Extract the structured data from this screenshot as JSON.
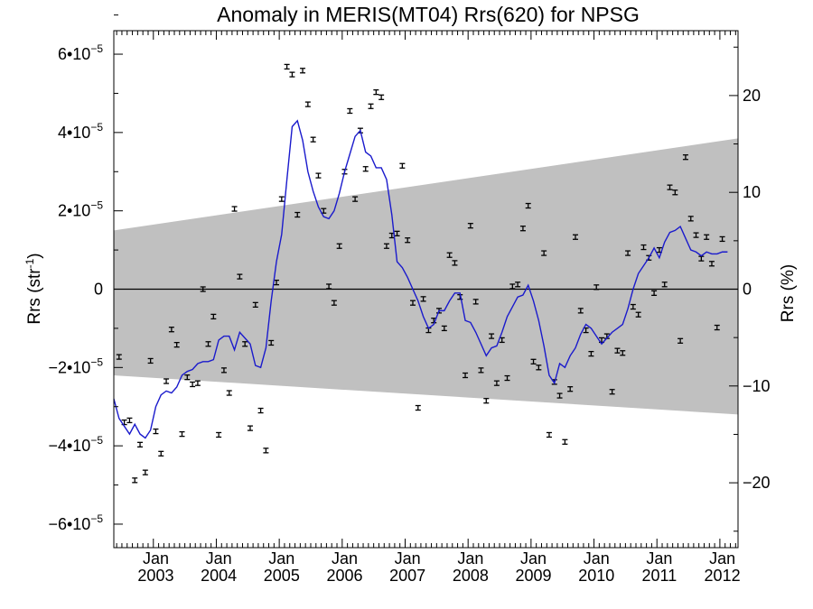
{
  "chart_data": {
    "type": "scatter",
    "title": "Anomaly in MERIS(MT04) Rrs(620) for NPSG",
    "ylabel": "Rrs (str",
    "ylabel_sup": "-1",
    "ylabel_close": ")",
    "y2label": "Rrs (%)",
    "x_range": [
      "2002-05-15",
      "2012-04-15"
    ],
    "ylim": [
      -6.6e-05,
      6.6e-05
    ],
    "y2lim": [
      -26.7,
      26.7
    ],
    "y_ticks": [
      {
        "value": -6e-05,
        "mant": "−6•10",
        "exp": "−5"
      },
      {
        "value": -4e-05,
        "mant": "−4•10",
        "exp": "−5"
      },
      {
        "value": -2e-05,
        "mant": "−2•10",
        "exp": "−5"
      },
      {
        "value": 0,
        "mant": "0",
        "exp": ""
      },
      {
        "value": 2e-05,
        "mant": "2•10",
        "exp": "−5"
      },
      {
        "value": 4e-05,
        "mant": "4•10",
        "exp": "−5"
      },
      {
        "value": 6e-05,
        "mant": "6•10",
        "exp": "−5"
      }
    ],
    "y2_ticks": [
      {
        "value": -20,
        "label": "−20"
      },
      {
        "value": -10,
        "label": "−10"
      },
      {
        "value": 0,
        "label": "0"
      },
      {
        "value": 10,
        "label": "10"
      },
      {
        "value": 20,
        "label": "20"
      }
    ],
    "x_ticks": [
      {
        "date": "2003-01",
        "month": "Jan",
        "year": "2003"
      },
      {
        "date": "2004-01",
        "month": "Jan",
        "year": "2004"
      },
      {
        "date": "2005-01",
        "month": "Jan",
        "year": "2005"
      },
      {
        "date": "2006-01",
        "month": "Jan",
        "year": "2006"
      },
      {
        "date": "2007-01",
        "month": "Jan",
        "year": "2007"
      },
      {
        "date": "2008-01",
        "month": "Jan",
        "year": "2008"
      },
      {
        "date": "2009-01",
        "month": "Jan",
        "year": "2009"
      },
      {
        "date": "2010-01",
        "month": "Jan",
        "year": "2010"
      },
      {
        "date": "2011-01",
        "month": "Jan",
        "year": "2011"
      },
      {
        "date": "2012-01",
        "month": "Jan",
        "year": "2012"
      }
    ],
    "band": {
      "color": "#c0c0c0",
      "start": {
        "date": "2002-05-15",
        "lower": -2.2e-05,
        "upper": 1.5e-05
      },
      "end": {
        "date": "2012-04-15",
        "lower": -3.2e-05,
        "upper": 3.85e-05
      }
    },
    "zero_line": true,
    "series": [
      {
        "kind": "points",
        "color": "#000000",
        "points": [
          [
            "2002-06",
            -1.73e-05
          ],
          [
            "2002-07",
            -3.4e-05
          ],
          [
            "2002-08",
            -3.35e-05
          ],
          [
            "2002-09",
            -4.88e-05
          ],
          [
            "2002-10",
            -3.97e-05
          ],
          [
            "2002-11",
            -4.68e-05
          ],
          [
            "2002-12",
            -1.83e-05
          ],
          [
            "2003-01",
            -3.63e-05
          ],
          [
            "2003-02",
            -4.2e-05
          ],
          [
            "2003-03",
            -2.35e-05
          ],
          [
            "2003-04",
            -1.03e-05
          ],
          [
            "2003-05",
            -1.42e-05
          ],
          [
            "2003-06",
            -3.7e-05
          ],
          [
            "2003-07",
            -2.25e-05
          ],
          [
            "2003-08",
            -2.43e-05
          ],
          [
            "2003-09",
            -2.4e-05
          ],
          [
            "2003-10",
            0.0
          ],
          [
            "2003-11",
            -1.4e-05
          ],
          [
            "2003-12",
            -7e-06
          ],
          [
            "2004-01",
            -3.72e-05
          ],
          [
            "2004-02",
            -2.07e-05
          ],
          [
            "2004-03",
            -2.65e-05
          ],
          [
            "2004-04",
            2.05e-05
          ],
          [
            "2004-05",
            3.2e-06
          ],
          [
            "2004-06",
            -1.4e-05
          ],
          [
            "2004-07",
            -3.55e-05
          ],
          [
            "2004-08",
            -4e-06
          ],
          [
            "2004-09",
            -3.1e-05
          ],
          [
            "2004-10",
            -4.12e-05
          ],
          [
            "2004-11",
            -1.37e-05
          ],
          [
            "2004-12",
            1.7e-06
          ],
          [
            "2005-01",
            2.3e-05
          ],
          [
            "2005-02",
            5.68e-05
          ],
          [
            "2005-03",
            5.48e-05
          ],
          [
            "2005-04",
            1.9e-05
          ],
          [
            "2005-05",
            5.58e-05
          ],
          [
            "2005-06",
            4.72e-05
          ],
          [
            "2005-07",
            3.82e-05
          ],
          [
            "2005-08",
            2.9e-05
          ],
          [
            "2005-09",
            2e-05
          ],
          [
            "2005-10",
            7e-07
          ],
          [
            "2005-11",
            -3.5e-06
          ],
          [
            "2005-12",
            1.1e-05
          ],
          [
            "2006-01",
            3e-05
          ],
          [
            "2006-02",
            4.55e-05
          ],
          [
            "2006-03",
            2.3e-05
          ],
          [
            "2006-04",
            4.05e-05
          ],
          [
            "2006-05",
            3.07e-05
          ],
          [
            "2006-06",
            4.67e-05
          ],
          [
            "2006-07",
            5.03e-05
          ],
          [
            "2006-08",
            4.9e-05
          ],
          [
            "2006-09",
            1.1e-05
          ],
          [
            "2006-10",
            1.37e-05
          ],
          [
            "2006-11",
            1.42e-05
          ],
          [
            "2006-12",
            3.15e-05
          ],
          [
            "2007-01",
            1.25e-05
          ],
          [
            "2007-02",
            -3.5e-06
          ],
          [
            "2007-03",
            -3.03e-05
          ],
          [
            "2007-04",
            -2.5e-06
          ],
          [
            "2007-05",
            -1.05e-05
          ],
          [
            "2007-06",
            -8e-06
          ],
          [
            "2007-07",
            -5.5e-06
          ],
          [
            "2007-08",
            -1e-05
          ],
          [
            "2007-09",
            8.7e-06
          ],
          [
            "2007-10",
            6.7e-06
          ],
          [
            "2007-11",
            -2e-06
          ],
          [
            "2007-12",
            -2.2e-05
          ],
          [
            "2008-01",
            1.62e-05
          ],
          [
            "2008-02",
            -3.2e-06
          ],
          [
            "2008-03",
            -2.07e-05
          ],
          [
            "2008-04",
            -2.85e-05
          ],
          [
            "2008-05",
            -1.2e-05
          ],
          [
            "2008-06",
            -2.4e-05
          ],
          [
            "2008-07",
            -1.3e-05
          ],
          [
            "2008-08",
            -2.27e-05
          ],
          [
            "2008-09",
            7e-07
          ],
          [
            "2008-10",
            1.2e-06
          ],
          [
            "2008-11",
            1.55e-05
          ],
          [
            "2008-12",
            2.13e-05
          ],
          [
            "2009-01",
            -1.85e-05
          ],
          [
            "2009-02",
            -2e-05
          ],
          [
            "2009-03",
            9.2e-06
          ],
          [
            "2009-04",
            -3.72e-05
          ],
          [
            "2009-05",
            -2.37e-05
          ],
          [
            "2009-06",
            -2.72e-05
          ],
          [
            "2009-07",
            -3.9e-05
          ],
          [
            "2009-08",
            -2.55e-05
          ],
          [
            "2009-09",
            1.33e-05
          ],
          [
            "2009-10",
            -5.5e-06
          ],
          [
            "2009-11",
            -1.05e-05
          ],
          [
            "2009-12",
            -1.65e-05
          ],
          [
            "2010-01",
            5e-07
          ],
          [
            "2010-02",
            -1.3e-05
          ],
          [
            "2010-03",
            -1.2e-05
          ],
          [
            "2010-04",
            -2.62e-05
          ],
          [
            "2010-05",
            -1.57e-05
          ],
          [
            "2010-06",
            -1.63e-05
          ],
          [
            "2010-07",
            9.2e-06
          ],
          [
            "2010-08",
            -4.5e-06
          ],
          [
            "2010-09",
            -6.5e-06
          ],
          [
            "2010-10",
            1.07e-05
          ],
          [
            "2010-11",
            8e-06
          ],
          [
            "2010-12",
            -1e-06
          ],
          [
            "2011-01",
            1e-05
          ],
          [
            "2011-02",
            1.2e-06
          ],
          [
            "2011-03",
            2.6e-05
          ],
          [
            "2011-04",
            2.47e-05
          ],
          [
            "2011-05",
            -1.32e-05
          ],
          [
            "2011-06",
            3.37e-05
          ],
          [
            "2011-07",
            1.8e-05
          ],
          [
            "2011-08",
            1.38e-05
          ],
          [
            "2011-09",
            7.8e-06
          ],
          [
            "2011-10",
            1.33e-05
          ],
          [
            "2011-11",
            6.5e-06
          ],
          [
            "2011-12",
            -9.8e-06
          ],
          [
            "2012-01",
            1.28e-05
          ]
        ]
      },
      {
        "kind": "line",
        "color": "#1a1acc",
        "points": [
          [
            "2002-05",
            -2.8e-05
          ],
          [
            "2002-06",
            -3.3e-05
          ],
          [
            "2002-07",
            -3.5e-05
          ],
          [
            "2002-08",
            -3.7e-05
          ],
          [
            "2002-09",
            -3.45e-05
          ],
          [
            "2002-10",
            -3.7e-05
          ],
          [
            "2002-11",
            -3.8e-05
          ],
          [
            "2002-12",
            -3.6e-05
          ],
          [
            "2003-01",
            -3e-05
          ],
          [
            "2003-02",
            -2.7e-05
          ],
          [
            "2003-03",
            -2.6e-05
          ],
          [
            "2003-04",
            -2.65e-05
          ],
          [
            "2003-05",
            -2.5e-05
          ],
          [
            "2003-06",
            -2.2e-05
          ],
          [
            "2003-07",
            -2.1e-05
          ],
          [
            "2003-08",
            -2.05e-05
          ],
          [
            "2003-09",
            -1.9e-05
          ],
          [
            "2003-10",
            -1.85e-05
          ],
          [
            "2003-11",
            -1.85e-05
          ],
          [
            "2003-12",
            -1.8e-05
          ],
          [
            "2004-01",
            -1.3e-05
          ],
          [
            "2004-02",
            -1.2e-05
          ],
          [
            "2004-03",
            -1.2e-05
          ],
          [
            "2004-04",
            -1.55e-05
          ],
          [
            "2004-05",
            -1.1e-05
          ],
          [
            "2004-06",
            -1.25e-05
          ],
          [
            "2004-07",
            -1.4e-05
          ],
          [
            "2004-08",
            -1.95e-05
          ],
          [
            "2004-09",
            -2e-05
          ],
          [
            "2004-10",
            -1.5e-05
          ],
          [
            "2004-11",
            -3e-06
          ],
          [
            "2004-12",
            7e-06
          ],
          [
            "2005-01",
            1.4e-05
          ],
          [
            "2005-02",
            2.8e-05
          ],
          [
            "2005-03",
            4.15e-05
          ],
          [
            "2005-04",
            4.3e-05
          ],
          [
            "2005-05",
            3.8e-05
          ],
          [
            "2005-06",
            3e-05
          ],
          [
            "2005-07",
            2.5e-05
          ],
          [
            "2005-08",
            2.1e-05
          ],
          [
            "2005-09",
            1.85e-05
          ],
          [
            "2005-10",
            1.8e-05
          ],
          [
            "2005-11",
            2e-05
          ],
          [
            "2005-12",
            2.45e-05
          ],
          [
            "2006-01",
            3e-05
          ],
          [
            "2006-02",
            3.45e-05
          ],
          [
            "2006-03",
            3.9e-05
          ],
          [
            "2006-04",
            4.05e-05
          ],
          [
            "2006-05",
            3.5e-05
          ],
          [
            "2006-06",
            3.4e-05
          ],
          [
            "2006-07",
            3.1e-05
          ],
          [
            "2006-08",
            3.1e-05
          ],
          [
            "2006-09",
            2.8e-05
          ],
          [
            "2006-10",
            1.9e-05
          ],
          [
            "2006-11",
            7e-06
          ],
          [
            "2006-12",
            5.5e-06
          ],
          [
            "2007-01",
            3e-06
          ],
          [
            "2007-02",
            0.0
          ],
          [
            "2007-03",
            -3e-06
          ],
          [
            "2007-04",
            -7e-06
          ],
          [
            "2007-05",
            -1e-05
          ],
          [
            "2007-06",
            -9e-06
          ],
          [
            "2007-07",
            -5.5e-06
          ],
          [
            "2007-08",
            -5.5e-06
          ],
          [
            "2007-09",
            -3e-06
          ],
          [
            "2007-10",
            -1e-06
          ],
          [
            "2007-11",
            -1e-06
          ],
          [
            "2007-12",
            -8e-06
          ],
          [
            "2008-01",
            -8.5e-06
          ],
          [
            "2008-02",
            -1.1e-05
          ],
          [
            "2008-03",
            -1.4e-05
          ],
          [
            "2008-04",
            -1.7e-05
          ],
          [
            "2008-05",
            -1.5e-05
          ],
          [
            "2008-06",
            -1.45e-05
          ],
          [
            "2008-07",
            -1.1e-05
          ],
          [
            "2008-08",
            -7e-06
          ],
          [
            "2008-09",
            -4.5e-06
          ],
          [
            "2008-10",
            -2e-06
          ],
          [
            "2008-11",
            -1.5e-06
          ],
          [
            "2008-12",
            1e-06
          ],
          [
            "2009-01",
            -3e-06
          ],
          [
            "2009-02",
            -8e-06
          ],
          [
            "2009-03",
            -1.45e-05
          ],
          [
            "2009-04",
            -2.2e-05
          ],
          [
            "2009-05",
            -2.4e-05
          ],
          [
            "2009-06",
            -1.9e-05
          ],
          [
            "2009-07",
            -2e-05
          ],
          [
            "2009-08",
            -1.7e-05
          ],
          [
            "2009-09",
            -1.5e-05
          ],
          [
            "2009-10",
            -1.15e-05
          ],
          [
            "2009-11",
            -9e-06
          ],
          [
            "2009-12",
            -1e-05
          ],
          [
            "2010-01",
            -1.2e-05
          ],
          [
            "2010-02",
            -1.4e-05
          ],
          [
            "2010-03",
            -1.25e-05
          ],
          [
            "2010-04",
            -1.1e-05
          ],
          [
            "2010-05",
            -1e-05
          ],
          [
            "2010-06",
            -9e-06
          ],
          [
            "2010-07",
            -5e-06
          ],
          [
            "2010-08",
            0.0
          ],
          [
            "2010-09",
            4e-06
          ],
          [
            "2010-10",
            6e-06
          ],
          [
            "2010-11",
            8e-06
          ],
          [
            "2010-12",
            1.05e-05
          ],
          [
            "2011-01",
            8e-06
          ],
          [
            "2011-02",
            1.2e-05
          ],
          [
            "2011-03",
            1.45e-05
          ],
          [
            "2011-04",
            1.5e-05
          ],
          [
            "2011-05",
            1.6e-05
          ],
          [
            "2011-06",
            1.3e-05
          ],
          [
            "2011-07",
            1e-05
          ],
          [
            "2011-08",
            9.5e-06
          ],
          [
            "2011-09",
            8.5e-06
          ],
          [
            "2011-10",
            9.5e-06
          ],
          [
            "2011-11",
            9e-06
          ],
          [
            "2011-12",
            9e-06
          ],
          [
            "2012-01",
            9.5e-06
          ],
          [
            "2012-02",
            9.5e-06
          ]
        ]
      }
    ]
  }
}
